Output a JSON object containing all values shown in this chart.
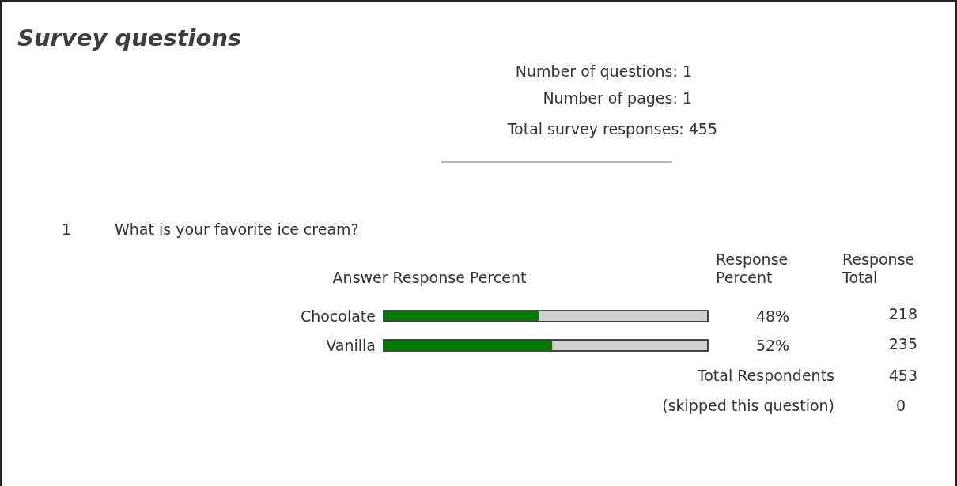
{
  "chart_data": {
    "type": "bar",
    "orientation": "horizontal",
    "title": "Survey questions",
    "subtitle": "What is your favorite ice cream?",
    "xlabel": "Answer Response Percent",
    "categories": [
      "Chocolate",
      "Vanilla"
    ],
    "values": [
      48,
      52
    ],
    "color": "#007a00",
    "value_labels": [
      "48%",
      "52%"
    ],
    "xlim": [
      0,
      100
    ],
    "annotations": [
      "Number of questions: 1",
      "Number of pages: 1",
      "Total survey responses: 455",
      "1",
      "Response Percent",
      "Response Total",
      "218",
      "235",
      "Total Respondents",
      "453",
      "(skipped this question)",
      "0"
    ]
  }
}
